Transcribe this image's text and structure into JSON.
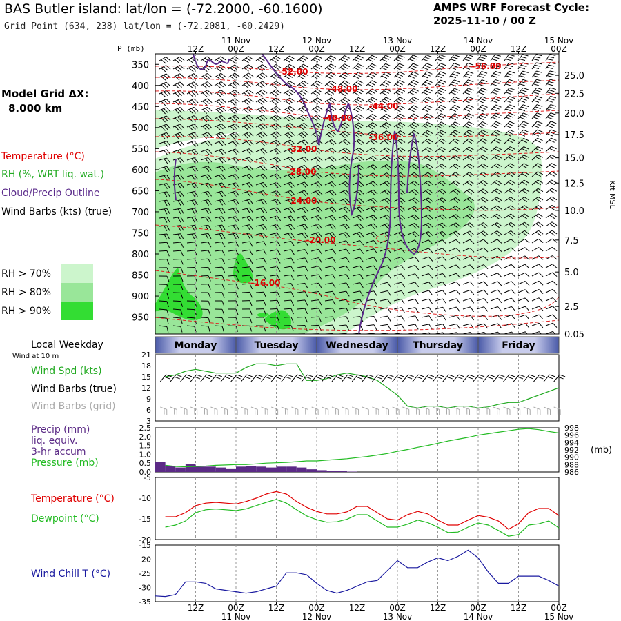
{
  "header": {
    "title": "BAS Butler island:  lat/lon = (-72.2000, -60.1600)",
    "grid_point": "Grid Point (634, 238) lat/lon = (-72.2081, -60.2429)",
    "cycle_label": "AMPS WRF Forecast Cycle:",
    "cycle_value": "2025-11-10 / 00  Z"
  },
  "colors": {
    "temperature": "#e00000",
    "rh": "#22aa22",
    "cloud": "#5a2a8a",
    "wind_barbs": "#000000",
    "wind_barbs_grid": "#aaaaaa",
    "precip": "#5b2a86",
    "pressure": "#22bb22",
    "dewpoint": "#22bb22",
    "windchill": "#1a1aa0",
    "rh70": "#ccf5cc",
    "rh80": "#99e699",
    "rh90": "#33dd33"
  },
  "time_axis": {
    "top_dates": [
      "11 Nov",
      "12 Nov",
      "13 Nov",
      "14 Nov",
      "15 Nov"
    ],
    "ticks": [
      "12Z",
      "00Z",
      "12Z",
      "00Z",
      "12Z",
      "00Z",
      "12Z",
      "00Z",
      "12Z",
      "00Z"
    ],
    "bottom_dates": [
      "11 Nov",
      "12 Nov",
      "13 Nov",
      "14 Nov",
      "15 Nov"
    ]
  },
  "legend_left": {
    "model_grid": "Model Grid ΔX:",
    "model_grid_value": "8.000 km",
    "temperature": "Temperature (°C)",
    "rh": "RH (%, WRT liq. wat.)",
    "cloud": "Cloud/Precip Outline",
    "wind_barbs": "Wind Barbs (kts) (true)",
    "rh_levels": [
      "RH > 70%",
      "RH > 80%",
      "RH > 90%"
    ]
  },
  "weekday_bar": {
    "label": "Local Weekday",
    "sublabel": "Wind at 10 m",
    "days": [
      "Monday",
      "Tuesday",
      "Wednesday",
      "Thursday",
      "Friday"
    ]
  },
  "chart_data": [
    {
      "type": "area",
      "name": "vertical_cross_section",
      "ylabel_left": "P (mb)",
      "ylabel_right": "Kft MSL",
      "pressure_ticks": [
        "350",
        "400",
        "450",
        "500",
        "550",
        "600",
        "650",
        "700",
        "750",
        "800",
        "850",
        "900",
        "950"
      ],
      "height_ticks": [
        "25.0",
        "22.5",
        "20.0",
        "17.5",
        "15.0",
        "12.5",
        "10.0",
        "7.5",
        "5.0",
        "2.5",
        "0.05"
      ],
      "isotherm_labels": [
        "-56.00",
        "-52.00",
        "-48.00",
        "-44.00",
        "-40.00",
        "-36.00",
        "-32.00",
        "-28.00",
        "-24.00",
        "-20.00",
        "-16.00"
      ],
      "ylim": [
        990,
        325
      ]
    },
    {
      "type": "line",
      "name": "surface_wind",
      "title": "Wind Spd (kts)",
      "barb_label": "Wind Barbs (true)",
      "barb_grid_label": "Wind Barbs (grid)",
      "ylim": [
        3,
        21
      ],
      "yticks": [
        "21",
        "18",
        "15",
        "12",
        "9",
        "6",
        "3"
      ],
      "x_hours": [
        3,
        6,
        9,
        12,
        15,
        18,
        21,
        24,
        27,
        30,
        33,
        36,
        39,
        42,
        45,
        48,
        51,
        54,
        57,
        60,
        63,
        66,
        69,
        72,
        75,
        78,
        81,
        84,
        87,
        90,
        93,
        96,
        99,
        102,
        105,
        108,
        111,
        114,
        117,
        120
      ],
      "values": [
        15,
        15.5,
        16.5,
        17,
        16.5,
        16,
        16,
        16,
        17.5,
        18.5,
        18.5,
        18,
        18.5,
        18.5,
        14,
        14,
        14.5,
        15.5,
        16,
        15.5,
        15,
        14,
        12,
        10,
        7,
        6.5,
        7,
        7,
        6.5,
        7,
        7,
        6.5,
        6.8,
        7.5,
        8,
        8,
        9,
        10,
        11,
        12
      ]
    },
    {
      "type": "bar",
      "name": "precip_pressure",
      "precip_label": "Precip (mm)",
      "precip_sub1": "liq. equiv.",
      "precip_sub2": "3-hr accum",
      "pressure_label": "Pressure (mb)",
      "right_unit": "(mb)",
      "precip_ylim": [
        0,
        2.5
      ],
      "precip_yticks": [
        "2.5",
        "2.0",
        "1.5",
        "1.0",
        "0.5",
        "0.0"
      ],
      "pressure_ylim": [
        986,
        998
      ],
      "pressure_yticks": [
        "998",
        "996",
        "994",
        "992",
        "990",
        "988",
        "986"
      ],
      "x_hours": [
        3,
        6,
        9,
        12,
        15,
        18,
        21,
        24,
        27,
        30,
        33,
        36,
        39,
        42,
        45,
        48,
        51,
        54,
        57,
        60,
        63,
        66,
        69,
        72,
        75,
        78,
        81,
        84,
        87,
        90,
        93,
        96,
        99,
        102,
        105,
        108,
        111,
        114,
        117,
        120
      ],
      "precip": [
        0.55,
        0.35,
        0.25,
        0.45,
        0.3,
        0.3,
        0.25,
        0.2,
        0.3,
        0.35,
        0.3,
        0.25,
        0.3,
        0.3,
        0.25,
        0.15,
        0.1,
        0.05,
        0.05,
        0.02,
        0,
        0,
        0,
        0,
        0,
        0,
        0,
        0,
        0,
        0,
        0,
        0,
        0,
        0,
        0,
        0,
        0,
        0,
        0,
        0
      ],
      "pressure": [
        987.8,
        987.5,
        987.4,
        987.5,
        987.6,
        987.8,
        987.9,
        988,
        988,
        988.2,
        988.4,
        988.5,
        988.6,
        988.8,
        989,
        989,
        989.2,
        989.4,
        989.6,
        989.9,
        990.2,
        990.6,
        991,
        991.6,
        992.1,
        992.7,
        993.2,
        993.8,
        994.4,
        994.9,
        995.4,
        996,
        996.4,
        996.8,
        997.2,
        997.6,
        997.8,
        997.5,
        997,
        996.6
      ]
    },
    {
      "type": "line",
      "name": "temperature_dewpoint",
      "temp_label": "Temperature (°C)",
      "dew_label": "Dewpoint (°C)",
      "ylim": [
        -20,
        -5
      ],
      "yticks": [
        "-5",
        "-10",
        "-15",
        "-20"
      ],
      "x_hours": [
        3,
        6,
        9,
        12,
        15,
        18,
        21,
        24,
        27,
        30,
        33,
        36,
        39,
        42,
        45,
        48,
        51,
        54,
        57,
        60,
        63,
        66,
        69,
        72,
        75,
        78,
        81,
        84,
        87,
        90,
        93,
        96,
        99,
        102,
        105,
        108,
        111,
        114,
        117,
        120
      ],
      "temperature": [
        -14.5,
        -14.5,
        -13.5,
        -11.8,
        -11.2,
        -11.0,
        -11.2,
        -11.4,
        -10.8,
        -10,
        -9,
        -8.4,
        -9,
        -10.8,
        -12.2,
        -13.2,
        -13.8,
        -13.8,
        -13.3,
        -12,
        -12,
        -13.5,
        -15,
        -15.3,
        -14,
        -13.2,
        -13.8,
        -15.3,
        -16.5,
        -16.5,
        -15.3,
        -14.2,
        -14.6,
        -15.5,
        -17.5,
        -16.2,
        -13.5,
        -12.5,
        -12.5,
        -14.2
      ],
      "dewpoint": [
        -17,
        -16.5,
        -15.5,
        -13.5,
        -12.8,
        -12.6,
        -12.8,
        -13,
        -12.6,
        -11.8,
        -11,
        -10.3,
        -11.2,
        -12.8,
        -14.3,
        -15.2,
        -15.8,
        -15.7,
        -15.1,
        -14,
        -14,
        -15.5,
        -17,
        -17,
        -16.3,
        -15.3,
        -15.9,
        -17,
        -18.3,
        -18.2,
        -17,
        -16,
        -16.5,
        -17.8,
        -19.2,
        -18.8,
        -16.5,
        -16.2,
        -15.5,
        -17.2
      ]
    },
    {
      "type": "line",
      "name": "wind_chill",
      "title": "Wind Chill T (°C)",
      "ylim": [
        -35,
        -15
      ],
      "yticks": [
        "-15",
        "-20",
        "-25",
        "-30",
        "-35"
      ],
      "x_hours": [
        0,
        3,
        6,
        9,
        12,
        15,
        18,
        21,
        24,
        27,
        30,
        33,
        36,
        39,
        42,
        45,
        48,
        51,
        54,
        57,
        60,
        63,
        66,
        69,
        72,
        75,
        78,
        81,
        84,
        87,
        90,
        93,
        96,
        99,
        102,
        105,
        108,
        111,
        114,
        117,
        120
      ],
      "values": [
        -33,
        -33.2,
        -32.5,
        -28,
        -28,
        -28.5,
        -30.5,
        -31,
        -31.5,
        -32,
        -31.5,
        -30.5,
        -29.5,
        -24.8,
        -24.8,
        -25.5,
        -28.5,
        -31,
        -32,
        -31,
        -29.5,
        -28,
        -27.5,
        -24,
        -20.5,
        -23,
        -23,
        -21,
        -19.5,
        -20.5,
        -19,
        -16.8,
        -19.5,
        -24.5,
        -28.5,
        -28.5,
        -26,
        -26,
        -26,
        -27.5,
        -29.5
      ]
    }
  ]
}
